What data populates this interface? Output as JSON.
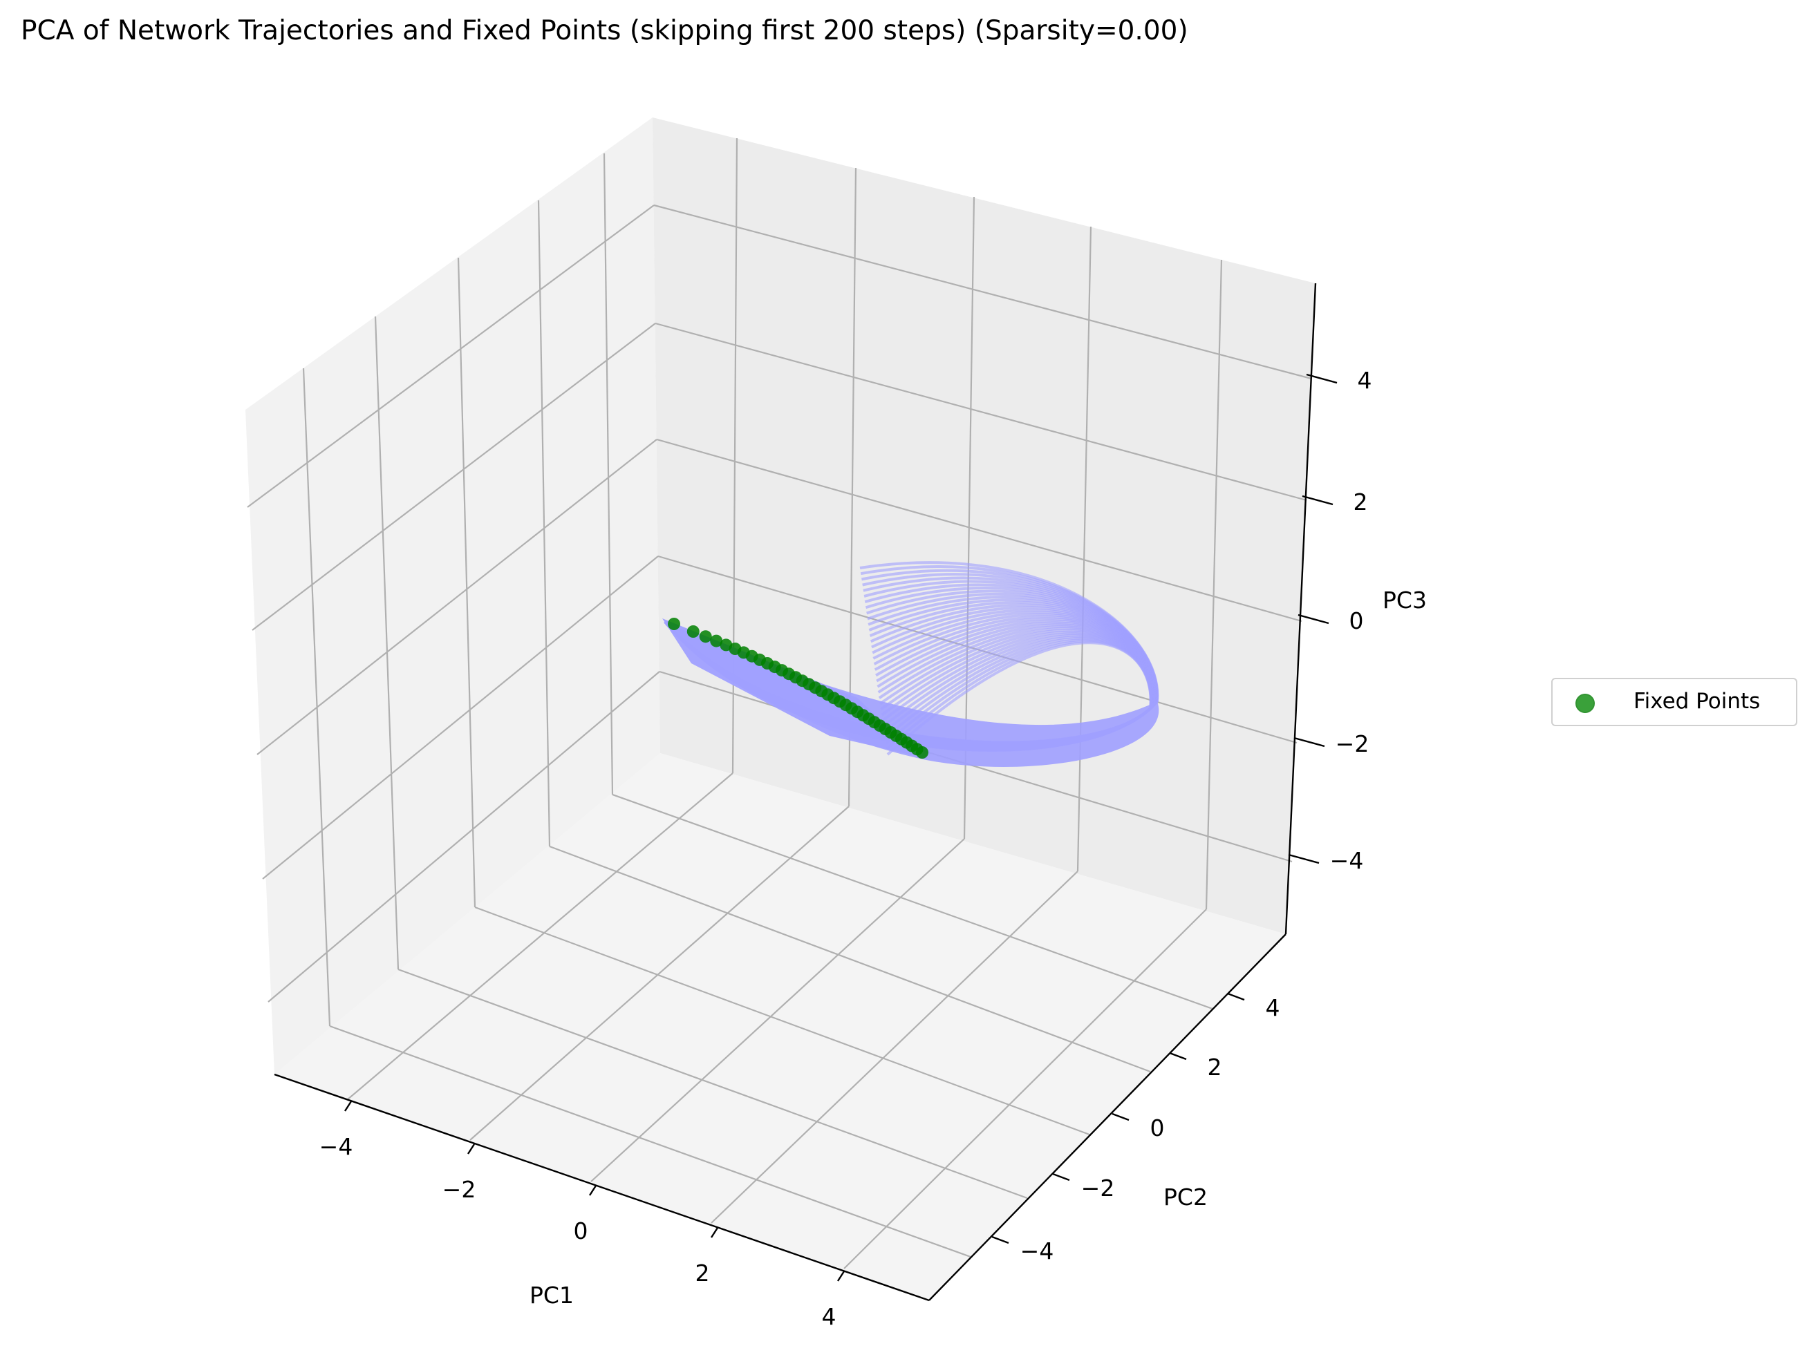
{
  "chart_data": {
    "type": "scatter",
    "title": "PCA of Network Trajectories and Fixed Points (skipping first 200 steps) (Sparsity=0.00)",
    "xlabel": "PC1",
    "ylabel": "PC2",
    "zlabel": "PC3",
    "xlim": [
      -5.5,
      5.5
    ],
    "ylim": [
      -5.5,
      5.5
    ],
    "zlim": [
      -5.5,
      5.5
    ],
    "xticks": [
      "−4",
      "−2",
      "0",
      "2",
      "4"
    ],
    "yticks": [
      "−4",
      "−2",
      "0",
      "2",
      "4"
    ],
    "zticks": [
      "−4",
      "−2",
      "0",
      "2",
      "4"
    ],
    "grid": true,
    "legend_position": "right",
    "series": [
      {
        "name": "Fixed Points",
        "kind": "scatter",
        "color": "#008000",
        "x": [
          -2.0,
          -1.9,
          -1.8,
          -1.7,
          -1.6,
          -1.5,
          -1.4,
          -1.3,
          -1.2,
          -1.1,
          -1.0,
          -0.9,
          -0.8,
          -0.7,
          -0.6,
          -0.5,
          -0.4,
          -0.3,
          -0.2,
          -0.1,
          0.0,
          0.1,
          0.2,
          0.3,
          0.4,
          0.5,
          0.6,
          0.7,
          0.8,
          0.9,
          1.0,
          1.1,
          1.2,
          1.3,
          1.4,
          1.5
        ],
        "y": [
          2.0,
          1.85,
          1.7,
          1.55,
          1.4,
          1.25,
          1.1,
          0.95,
          0.8,
          0.65,
          0.5,
          0.35,
          0.2,
          0.05,
          -0.1,
          -0.25,
          -0.4,
          -0.55,
          -0.7,
          -0.85,
          -1.0,
          -1.15,
          -1.3,
          -1.45,
          -1.6,
          -1.75,
          -1.9,
          -2.05,
          -2.2,
          -2.35,
          -2.5,
          -2.65,
          -2.8,
          -2.95,
          -3.1,
          -3.25
        ],
        "z": [
          -1.4,
          -1.45,
          -1.5,
          -1.55,
          -1.6,
          -1.65,
          -1.7,
          -1.75,
          -1.8,
          -1.85,
          -1.9,
          -1.95,
          -2.0,
          -2.05,
          -2.1,
          -2.15,
          -2.2,
          -2.25,
          -2.3,
          -2.35,
          -2.4,
          -2.45,
          -2.5,
          -2.55,
          -2.6,
          -2.65,
          -2.7,
          -2.75,
          -2.8,
          -2.85,
          -2.9,
          -2.95,
          -3.0,
          -3.05,
          -3.1,
          -3.15
        ]
      },
      {
        "kind": "line",
        "color": "#a0a0ff",
        "description_points": "trajectory band from (PC1≈-2, PC2≈2, PC3≈-1.4) sweeping to (PC1≈4, PC2≈0, PC3≈-1) and curling up to PC3≈1.5"
      }
    ]
  },
  "legend": {
    "label": "Fixed Points"
  }
}
